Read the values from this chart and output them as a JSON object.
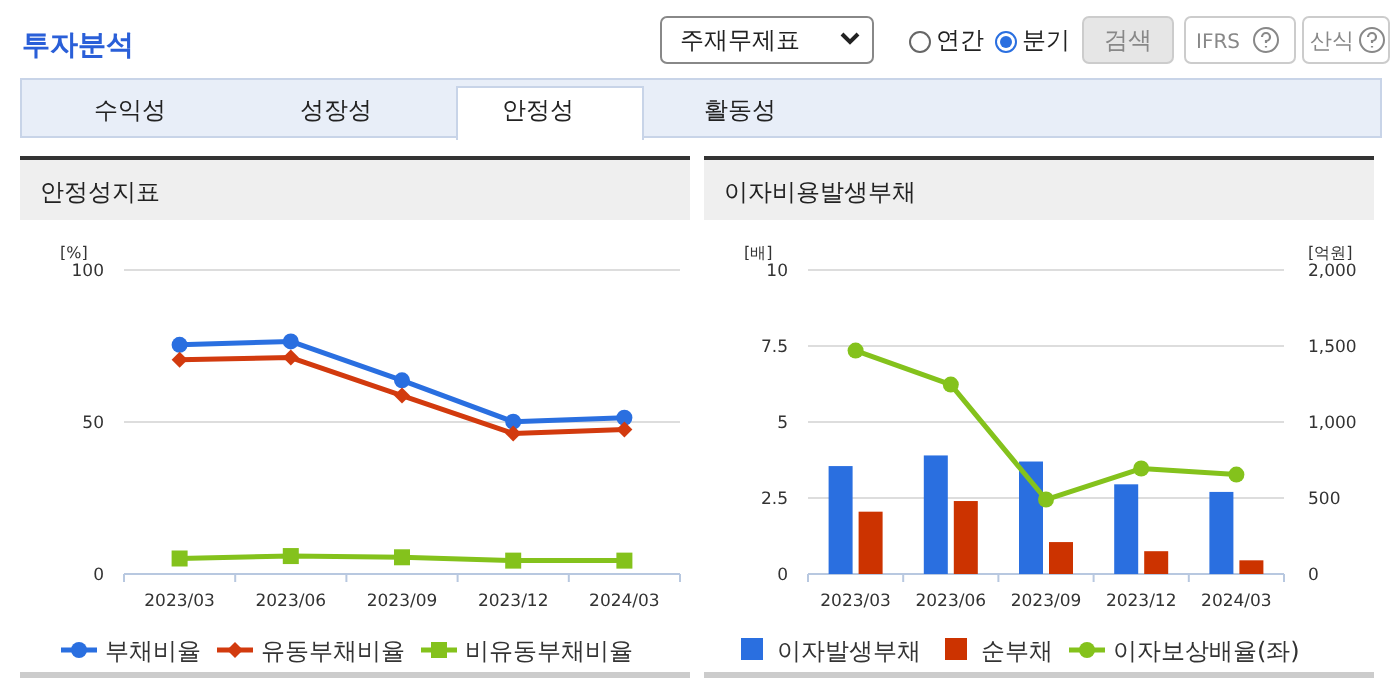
{
  "chart_data": [
    {
      "type": "line",
      "title": "안정성지표",
      "ylabel": "[%]",
      "categories": [
        "2023/03",
        "2023/06",
        "2023/09",
        "2023/12",
        "2024/03"
      ],
      "series": [
        {
          "name": "부채비율",
          "color": "#2a6fe0",
          "marker": "circle",
          "values": [
            75.4,
            76.5,
            63.7,
            50.1,
            51.4
          ]
        },
        {
          "name": "유동부채비율",
          "color": "#d23a0e",
          "marker": "diamond",
          "values": [
            70.5,
            71.2,
            58.7,
            46.2,
            47.5
          ]
        },
        {
          "name": "비유동부채비율",
          "color": "#84c21c",
          "marker": "square",
          "values": [
            5.1,
            5.9,
            5.5,
            4.4,
            4.4
          ]
        }
      ],
      "ylim": [
        0,
        100
      ],
      "yticks": [
        0,
        50,
        100
      ],
      "grid": "y",
      "legend": "bottom",
      "annotations": [
        "투자분석",
        "주재무제표",
        "연간",
        "분기",
        "검색",
        "IFRS",
        "산식",
        "수익성",
        "성장성",
        "안정성",
        "활동성"
      ]
    },
    {
      "type": "bar",
      "title": "이자비용발생부채",
      "ylabel": "[배]",
      "y2label": "[억원]",
      "categories": [
        "2023/03",
        "2023/06",
        "2023/09",
        "2023/12",
        "2024/03"
      ],
      "series": [
        {
          "name": "이자발생부채",
          "color": "#2a6fe0",
          "axis": "y2",
          "values": [
            710,
            780,
            740,
            590,
            540
          ]
        },
        {
          "name": "순부채",
          "color": "#cc3300",
          "axis": "y2",
          "values": [
            410,
            480,
            210,
            150,
            90
          ]
        },
        {
          "name": "이자보상배율(좌)",
          "type": "line",
          "color": "#84c21c",
          "marker": "circle",
          "axis": "y",
          "values": [
            7.35,
            6.23,
            2.45,
            3.47,
            3.27
          ]
        }
      ],
      "ylim": [
        0,
        10
      ],
      "yticks": [
        0,
        2.5,
        5,
        7.5,
        10
      ],
      "y2lim": [
        0,
        2000
      ],
      "y2ticks": [
        0,
        {
          "value": 500,
          "label": "500"
        },
        {
          "value": 1000,
          "label": "1,000"
        },
        {
          "value": 1500,
          "label": "1,500"
        },
        {
          "value": 2000,
          "label": "2,000"
        }
      ],
      "grid": "y",
      "legend": "bottom"
    }
  ]
}
